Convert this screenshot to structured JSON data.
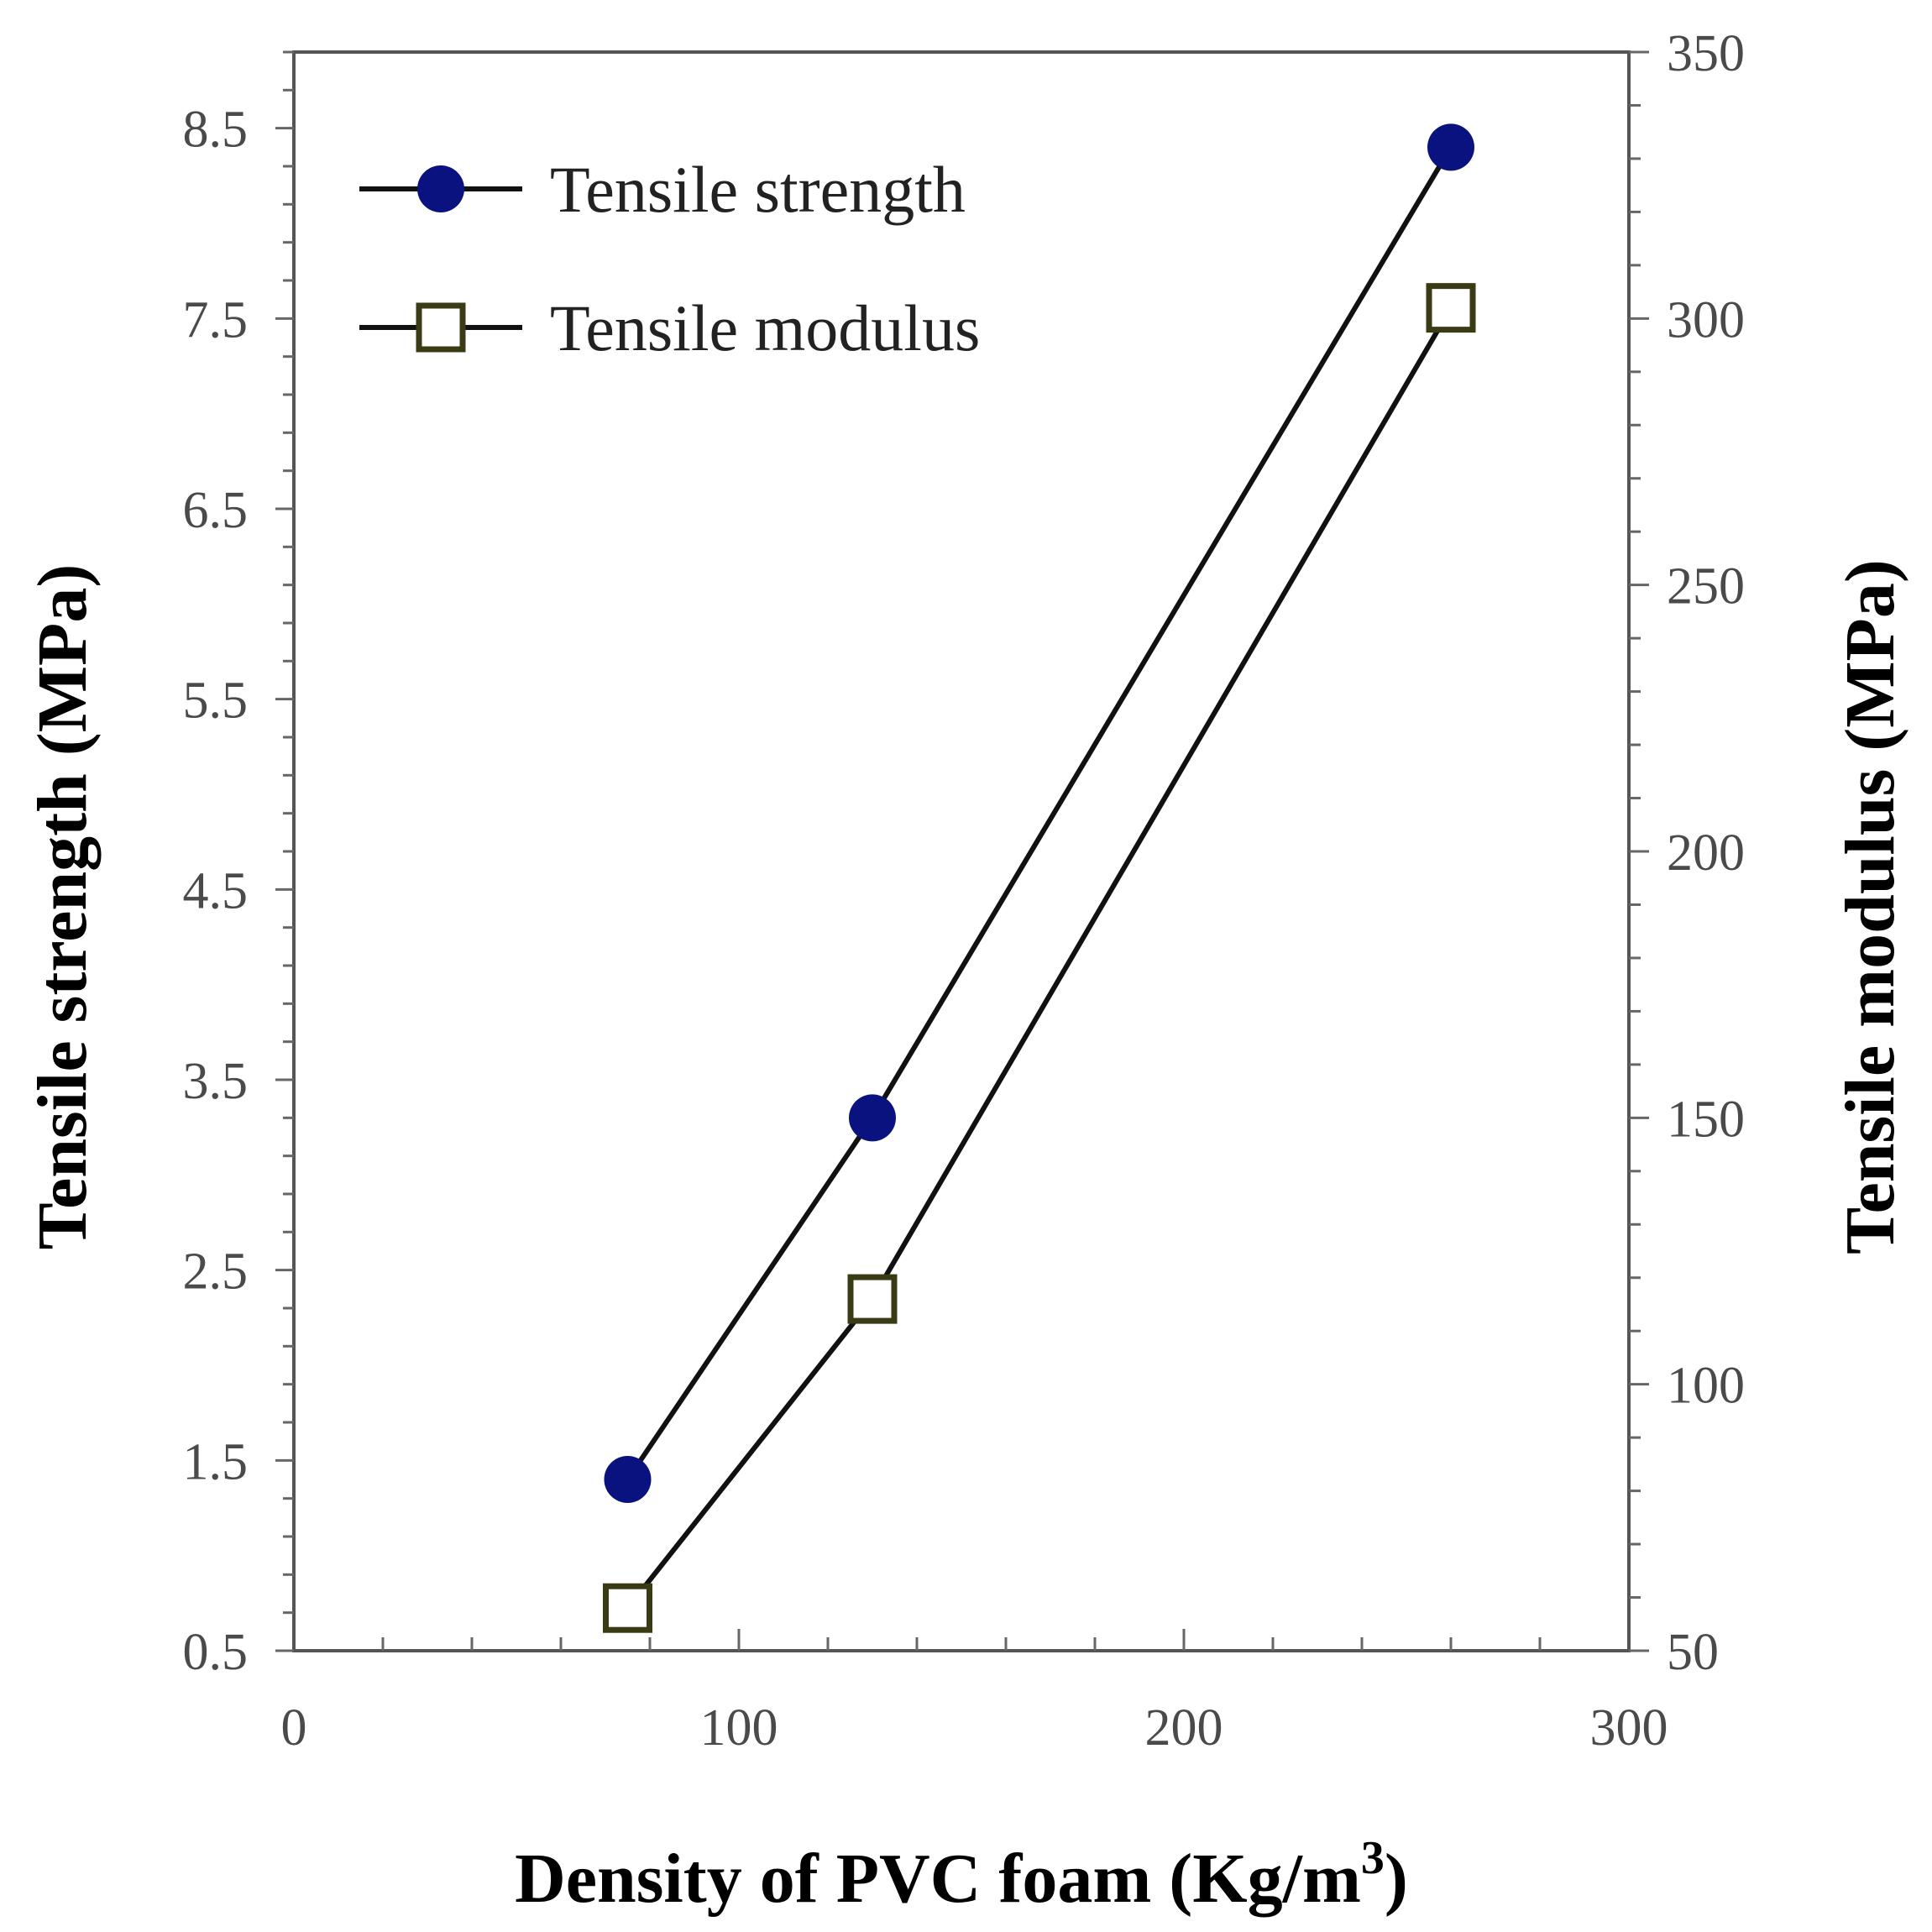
{
  "chart_data": {
    "type": "line",
    "xlabel_main": "Density of PVC foam (Kg/m",
    "xlabel_sup": "3",
    "xlabel_tail": ")",
    "ylabel_left": "Tensile strength (MPa)",
    "ylabel_right": "Tensile modulus (MPa)",
    "xlim": [
      0,
      300
    ],
    "ylim_left": [
      0.5,
      8.9
    ],
    "ylim_right": [
      50,
      350
    ],
    "x_ticks": [
      0,
      100,
      200,
      300
    ],
    "x_tick_labels": [
      "0",
      "100",
      "200",
      "300"
    ],
    "y_left_ticks": [
      0.5,
      1.5,
      2.5,
      3.5,
      4.5,
      5.5,
      6.5,
      7.5,
      8.5
    ],
    "y_left_tick_labels": [
      "0.5",
      "1.5",
      "2.5",
      "3.5",
      "4.5",
      "5.5",
      "6.5",
      "7.5",
      "8.5"
    ],
    "y_right_ticks": [
      50,
      100,
      150,
      200,
      250,
      300,
      350
    ],
    "y_right_tick_labels": [
      "50",
      "100",
      "150",
      "200",
      "250",
      "300",
      "350"
    ],
    "legend_position": "top-left",
    "series": [
      {
        "name": "Tensile strength",
        "axis": "left",
        "marker": "filled-circle",
        "color": "#0a1280",
        "x": [
          75,
          130,
          260
        ],
        "values": [
          1.4,
          3.3,
          8.4
        ]
      },
      {
        "name": "Tensile modulus",
        "axis": "right",
        "marker": "open-square",
        "color": "#3a3a14",
        "x": [
          75,
          130,
          260
        ],
        "values": [
          58,
          116,
          302
        ]
      }
    ]
  }
}
